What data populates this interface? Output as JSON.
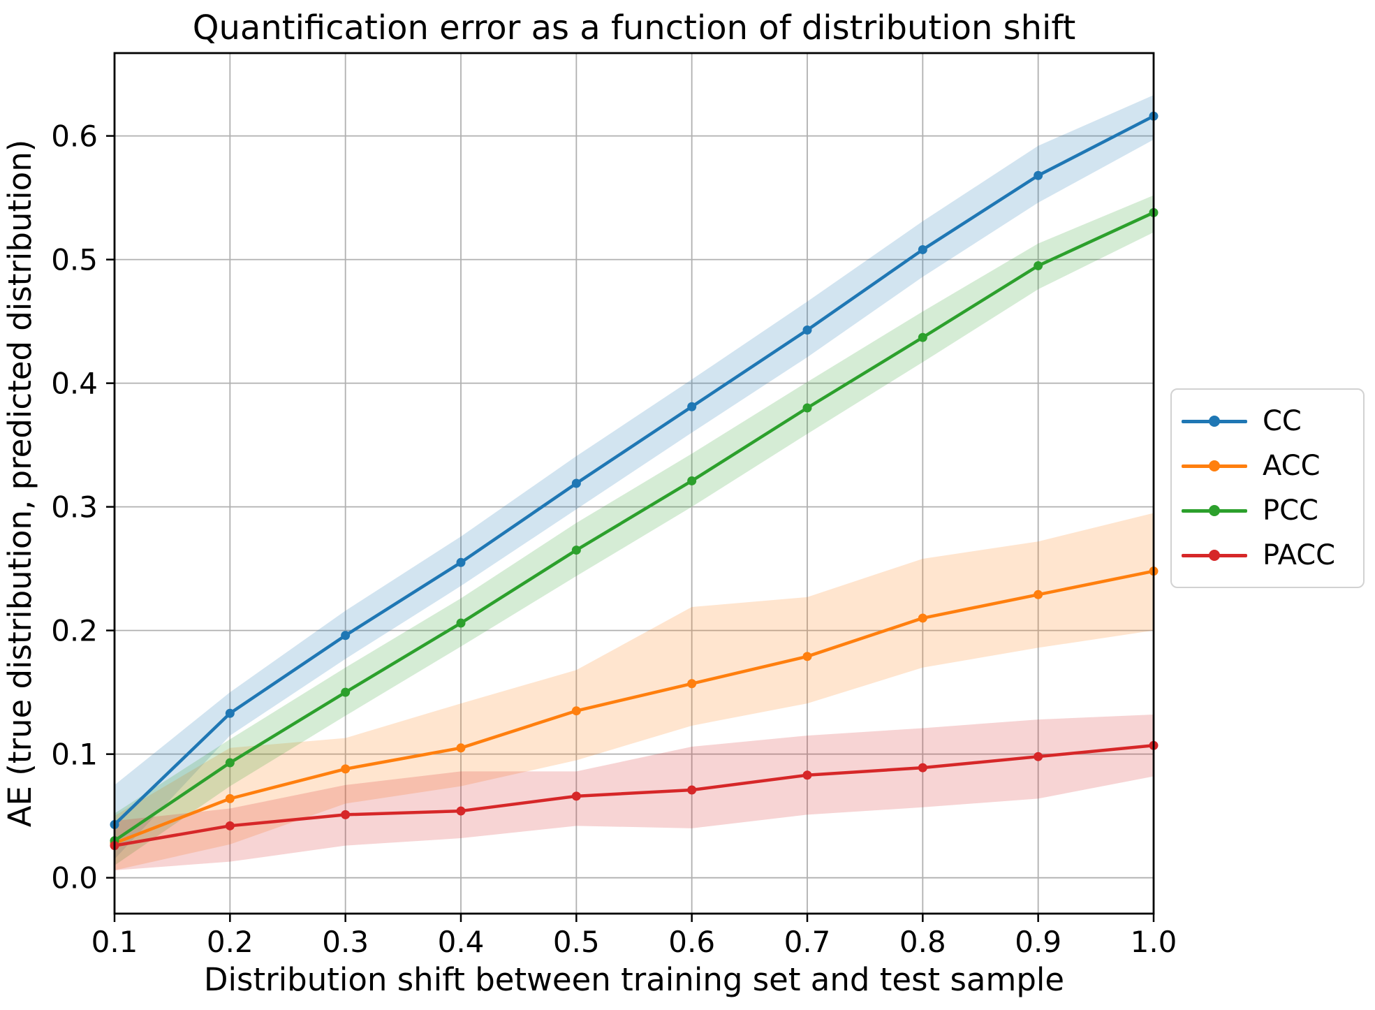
{
  "chart_data": {
    "type": "line",
    "title": "Quantification error as a function of distribution shift",
    "xlabel": "Distribution shift between training set and test sample",
    "ylabel": "AE (true distribution, predicted distribution)",
    "x": [
      0.1,
      0.2,
      0.3,
      0.4,
      0.5,
      0.6,
      0.7,
      0.8,
      0.9,
      1.0
    ],
    "x_ticks": [
      "0.1",
      "0.2",
      "0.3",
      "0.4",
      "0.5",
      "0.6",
      "0.7",
      "0.8",
      "0.9",
      "1.0"
    ],
    "y_ticks": [
      "0.0",
      "0.1",
      "0.2",
      "0.3",
      "0.4",
      "0.5",
      "0.6"
    ],
    "xlim": [
      0.1,
      1.0
    ],
    "ylim": [
      -0.029,
      0.667
    ],
    "grid": true,
    "grid_color": "#b0b0b0",
    "legend_position": "right-outside",
    "series": [
      {
        "name": "CC",
        "color": "#1f77b4",
        "values": [
          0.043,
          0.133,
          0.196,
          0.255,
          0.319,
          0.381,
          0.443,
          0.508,
          0.568,
          0.616
        ],
        "band_lower": [
          0.015,
          0.115,
          0.177,
          0.236,
          0.298,
          0.36,
          0.421,
          0.486,
          0.546,
          0.597
        ],
        "band_upper": [
          0.075,
          0.15,
          0.216,
          0.276,
          0.341,
          0.403,
          0.466,
          0.531,
          0.592,
          0.633
        ]
      },
      {
        "name": "ACC",
        "color": "#ff7f0e",
        "values": [
          0.028,
          0.064,
          0.088,
          0.105,
          0.135,
          0.157,
          0.179,
          0.21,
          0.229,
          0.248
        ],
        "band_lower": [
          0.006,
          0.027,
          0.06,
          0.074,
          0.095,
          0.123,
          0.141,
          0.17,
          0.186,
          0.2
        ],
        "band_upper": [
          0.05,
          0.105,
          0.113,
          0.141,
          0.168,
          0.219,
          0.227,
          0.258,
          0.272,
          0.295
        ]
      },
      {
        "name": "PCC",
        "color": "#2ca02c",
        "values": [
          0.03,
          0.093,
          0.15,
          0.206,
          0.265,
          0.321,
          0.38,
          0.437,
          0.495,
          0.538
        ],
        "band_lower": [
          0.01,
          0.074,
          0.131,
          0.187,
          0.244,
          0.3,
          0.359,
          0.417,
          0.476,
          0.522
        ],
        "band_upper": [
          0.052,
          0.112,
          0.17,
          0.226,
          0.287,
          0.343,
          0.401,
          0.458,
          0.513,
          0.552
        ]
      },
      {
        "name": "PACC",
        "color": "#d62728",
        "values": [
          0.026,
          0.042,
          0.051,
          0.054,
          0.066,
          0.071,
          0.083,
          0.089,
          0.098,
          0.107
        ],
        "band_lower": [
          0.006,
          0.013,
          0.026,
          0.032,
          0.042,
          0.04,
          0.051,
          0.057,
          0.064,
          0.082
        ],
        "band_upper": [
          0.046,
          0.056,
          0.075,
          0.086,
          0.086,
          0.106,
          0.115,
          0.121,
          0.128,
          0.132
        ]
      }
    ],
    "band_opacity": 0.2
  }
}
